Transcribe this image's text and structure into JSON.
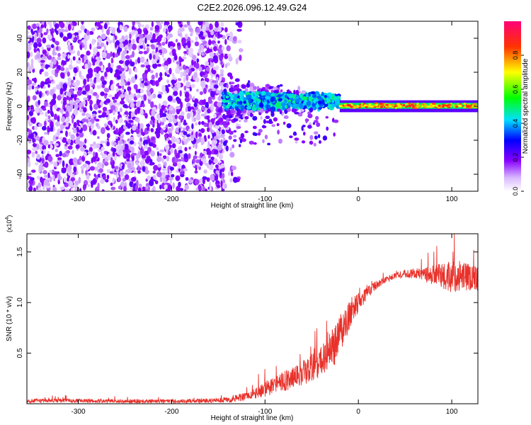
{
  "title": "C2E2.2026.096.12.49.G24",
  "chart_data": [
    {
      "type": "heatmap",
      "xlabel": "Height of straight line (km)",
      "ylabel": "Frequency (Hz)",
      "xlim": [
        -355,
        128
      ],
      "ylim": [
        -50,
        50
      ],
      "x_ticks": [
        -300,
        -200,
        -100,
        0,
        100
      ],
      "x_tick_labels": [
        "-300",
        "-200",
        "-100",
        "0",
        "100"
      ],
      "y_ticks": [
        -40,
        -20,
        0,
        20,
        40
      ],
      "y_tick_labels": [
        "-40",
        "-20",
        "0",
        "20",
        "40"
      ],
      "grid": false,
      "regions": [
        {
          "name": "noise",
          "x_range": [
            -355,
            -145
          ],
          "y_range": [
            -50,
            50
          ],
          "amplitude": 0.2
        },
        {
          "name": "transition",
          "x_range": [
            -145,
            -20
          ],
          "y_range": [
            -15,
            15
          ],
          "amplitude": 0.4
        },
        {
          "name": "signal-line",
          "x_range": [
            -20,
            128
          ],
          "y_range": [
            -3,
            3
          ],
          "amplitude": 0.75
        }
      ],
      "colorbar": {
        "label": "Normalized spectral amplitude",
        "range": [
          0,
          1
        ],
        "ticks": [
          0.0,
          0.2,
          0.4,
          0.6,
          0.8
        ],
        "tick_labels": [
          "0.0",
          "0.2",
          "0.4",
          "0.6",
          "0.8"
        ],
        "stops": [
          {
            "v": 0.0,
            "color": "#ffffff"
          },
          {
            "v": 0.08,
            "color": "#d9b8ff"
          },
          {
            "v": 0.18,
            "color": "#8800ff"
          },
          {
            "v": 0.3,
            "color": "#0000ff"
          },
          {
            "v": 0.42,
            "color": "#00e0ff"
          },
          {
            "v": 0.55,
            "color": "#00ff00"
          },
          {
            "v": 0.7,
            "color": "#ffff00"
          },
          {
            "v": 0.85,
            "color": "#ff3300"
          },
          {
            "v": 1.0,
            "color": "#ff0077"
          }
        ]
      }
    },
    {
      "type": "line",
      "xlabel": "Height of straight line (km)",
      "ylabel": "SNR (10 * v/v)",
      "scale_label": "(x10",
      "scale_exponent": "4",
      "scale_close": ")",
      "xlim": [
        -355,
        128
      ],
      "ylim": [
        0,
        1.68
      ],
      "x_ticks": [
        -300,
        -200,
        -100,
        0,
        100
      ],
      "x_tick_labels": [
        "-300",
        "-200",
        "-100",
        "0",
        "100"
      ],
      "y_ticks": [
        0.5,
        1.0,
        1.5
      ],
      "y_tick_labels": [
        "0.5",
        "1.0",
        "1.5"
      ],
      "series": [
        {
          "name": "SNR",
          "color": "#e8312a",
          "x": [
            -355,
            -300,
            -250,
            -200,
            -160,
            -140,
            -120,
            -100,
            -80,
            -60,
            -40,
            -25,
            -15,
            -5,
            0,
            10,
            20,
            30,
            40,
            60,
            80,
            100,
            115,
            128
          ],
          "y": [
            0.03,
            0.03,
            0.025,
            0.025,
            0.03,
            0.04,
            0.07,
            0.14,
            0.22,
            0.3,
            0.42,
            0.58,
            0.78,
            0.95,
            1.0,
            1.1,
            1.18,
            1.23,
            1.27,
            1.29,
            1.27,
            1.26,
            1.25,
            1.24
          ],
          "noise": [
            0.02,
            0.02,
            0.02,
            0.02,
            0.02,
            0.03,
            0.04,
            0.07,
            0.1,
            0.12,
            0.15,
            0.2,
            0.18,
            0.12,
            0.1,
            0.06,
            0.04,
            0.03,
            0.03,
            0.05,
            0.1,
            0.16,
            0.14,
            0.12
          ]
        }
      ]
    }
  ]
}
